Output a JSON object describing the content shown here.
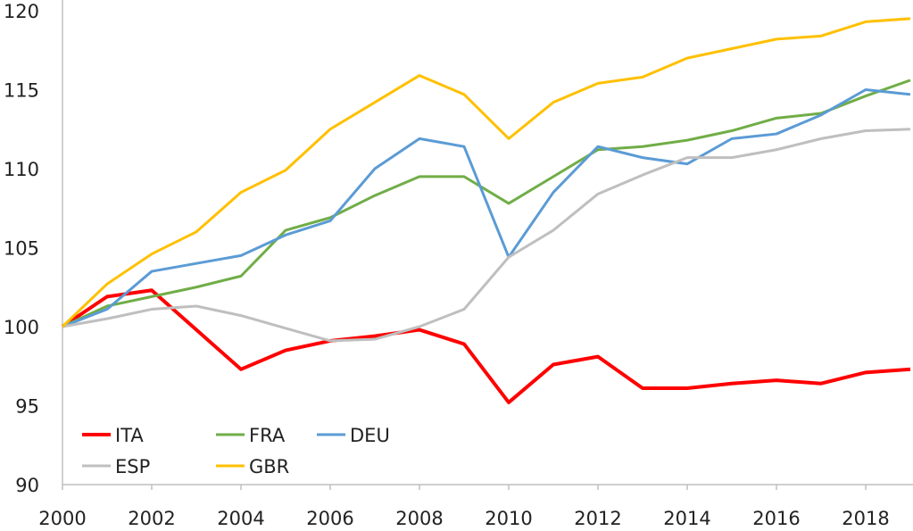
{
  "chart_data": {
    "type": "line",
    "title": "",
    "xlabel": "",
    "ylabel": "",
    "xlim": [
      2000,
      2019
    ],
    "ylim": [
      90,
      120
    ],
    "yticks": [
      "90",
      "95",
      "100",
      "105",
      "110",
      "115",
      "120"
    ],
    "xticks": [
      "2000",
      "2002",
      "2004",
      "2006",
      "2008",
      "2010",
      "2012",
      "2014",
      "2016",
      "2018"
    ],
    "grid": false,
    "legend_position": "bottom-left",
    "x": [
      2000,
      2001,
      2002,
      2003,
      2004,
      2005,
      2006,
      2007,
      2008,
      2009,
      2010,
      2011,
      2012,
      2013,
      2014,
      2015,
      2016,
      2017,
      2018,
      2019
    ],
    "series": [
      {
        "name": "ITA",
        "color": "#ff0000",
        "values": [
          100,
          101.9,
          102.3,
          99.8,
          97.3,
          98.5,
          99.1,
          99.4,
          99.8,
          98.9,
          95.2,
          97.6,
          98.1,
          96.1,
          96.1,
          96.4,
          96.6,
          96.4,
          97.1,
          97.3
        ]
      },
      {
        "name": "FRA",
        "color": "#70ad47",
        "values": [
          100,
          101.3,
          101.9,
          102.5,
          103.2,
          106.1,
          106.9,
          108.3,
          109.5,
          109.5,
          107.8,
          109.5,
          111.2,
          111.4,
          111.8,
          112.4,
          113.2,
          113.5,
          114.6,
          115.6
        ]
      },
      {
        "name": "DEU",
        "color": "#5b9bd5",
        "values": [
          100,
          101.1,
          103.5,
          104.0,
          104.5,
          105.8,
          106.7,
          110.0,
          111.9,
          111.4,
          104.4,
          108.5,
          111.4,
          110.7,
          110.3,
          111.9,
          112.2,
          113.4,
          115.0,
          114.7
        ]
      },
      {
        "name": "ESP",
        "color": "#bfbfbf",
        "values": [
          100,
          100.5,
          101.1,
          101.3,
          100.7,
          99.9,
          99.1,
          99.2,
          100.0,
          101.1,
          104.4,
          106.1,
          108.4,
          109.6,
          110.7,
          110.7,
          111.2,
          111.9,
          112.4,
          112.5
        ]
      },
      {
        "name": "GBR",
        "color": "#ffc000",
        "values": [
          100,
          102.7,
          104.6,
          106.0,
          108.5,
          109.9,
          112.5,
          114.2,
          115.9,
          114.7,
          111.9,
          114.2,
          115.4,
          115.8,
          117.0,
          117.6,
          118.2,
          118.4,
          119.3,
          119.5
        ]
      }
    ]
  }
}
